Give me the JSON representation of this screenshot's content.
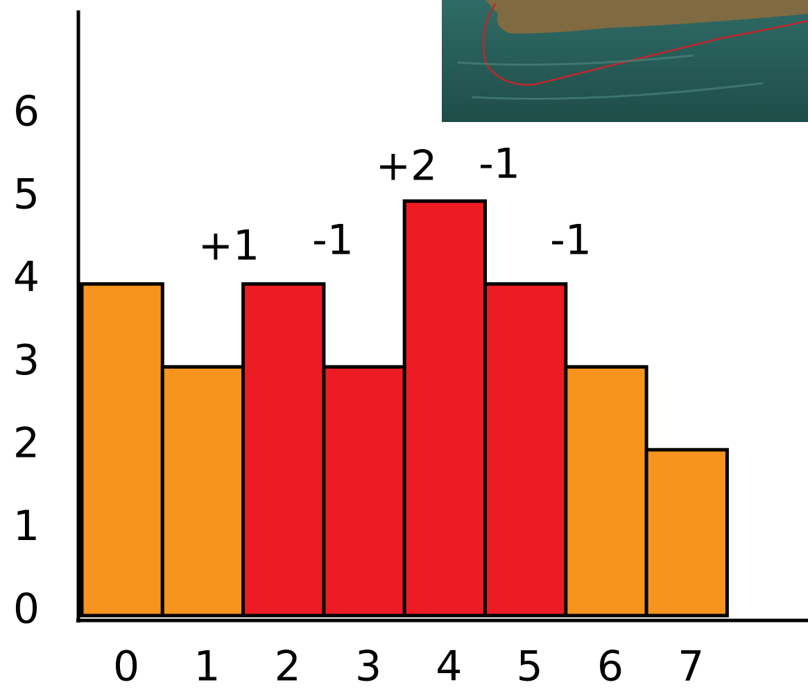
{
  "chart_data": {
    "type": "bar",
    "categories": [
      "0",
      "1",
      "2",
      "3",
      "4",
      "5",
      "6",
      "7"
    ],
    "values": [
      4,
      3,
      4,
      3,
      5,
      4,
      3,
      2
    ],
    "colors": [
      "#f7941d",
      "#f7941d",
      "#ed1c24",
      "#ed1c24",
      "#ed1c24",
      "#ed1c24",
      "#f7941d",
      "#f7941d"
    ],
    "ylim": [
      0,
      7.3
    ],
    "yticks": [
      0,
      1,
      2,
      3,
      4,
      5,
      6
    ],
    "annotations": [
      "+1",
      "-1",
      "+2",
      "-1",
      "-1"
    ]
  }
}
